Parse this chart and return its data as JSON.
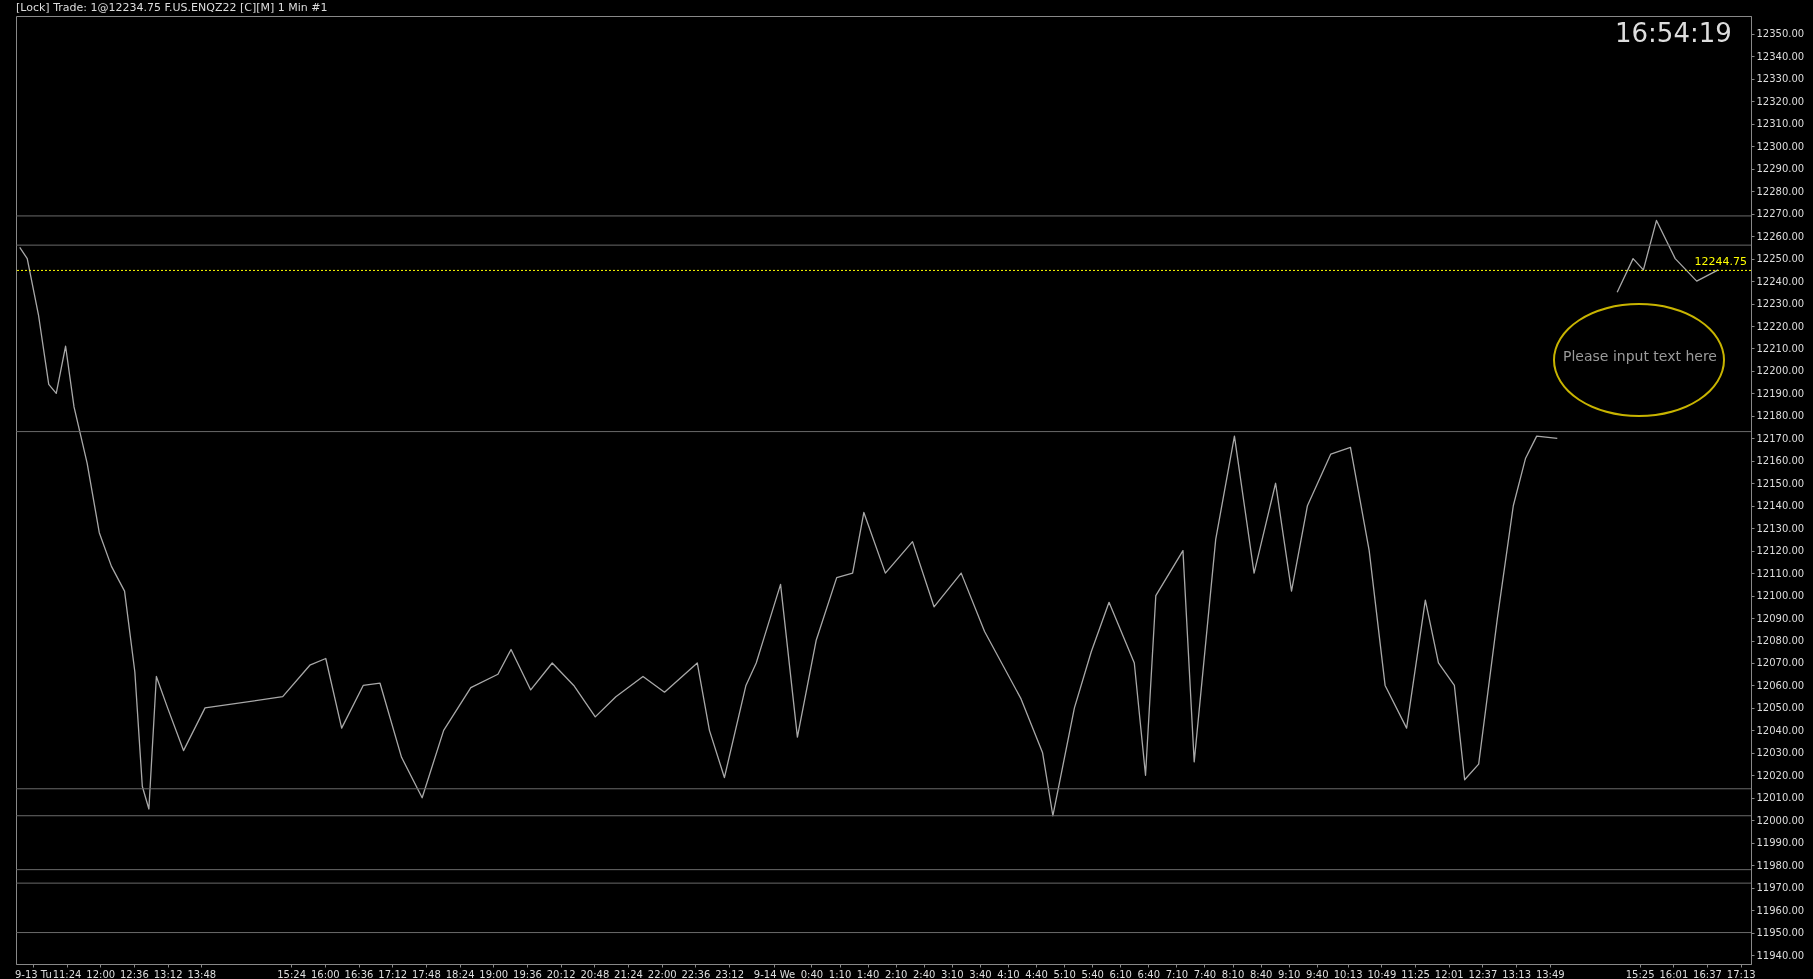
{
  "chart_data": {
    "type": "line",
    "title": "[Lock] Trade: 1@12234.75  F.US.ENQZ22 [C][M]  1 Min   #1",
    "annotations": [
      "16:54:19",
      "Please input text here"
    ],
    "series": [
      {
        "color": "#a8a8a8",
        "x": [
          "--09-13T10:34",
          "--09-13T10:42",
          "--09-13T10:54",
          "--09-13T11:05",
          "--09-13T11:13",
          "--09-13T11:23",
          "--09-13T11:32",
          "--09-13T11:46",
          "--09-13T11:59",
          "--09-13T12:12",
          "--09-13T12:26",
          "--09-13T12:37",
          "--09-13T12:45",
          "--09-13T12:52",
          "--09-13T13:00",
          "--09-13T13:12",
          "--09-13T13:29",
          "--09-13T13:52",
          "--09-13T15:15",
          "--09-13T15:44",
          "--09-13T16:01",
          "--09-13T16:18",
          "--09-13T16:41",
          "--09-13T16:59",
          "--09-13T17:22",
          "--09-13T17:44",
          "--09-13T18:07",
          "--09-13T18:36",
          "--09-13T19:05",
          "--09-13T19:19",
          "--09-13T19:40",
          "--09-13T20:03",
          "--09-13T20:26",
          "--09-13T20:49",
          "--09-13T21:11",
          "--09-13T21:40",
          "--09-13T22:03",
          "--09-13T22:38",
          "--09-13T22:51",
          "--09-13T23:07",
          "--09-13T23:30",
          "--09-13T23:41",
          "--09-14T00:07",
          "--09-14T00:25",
          "--09-14T00:45",
          "--09-14T01:07",
          "--09-14T01:24",
          "--09-14T01:36",
          "--09-14T01:59",
          "--09-14T02:28",
          "--09-14T02:51",
          "--09-14T03:20",
          "--09-14T03:45",
          "--09-14T04:24",
          "--09-14T04:47",
          "--09-14T04:58",
          "--09-14T05:21",
          "--09-14T05:39",
          "--09-14T05:58",
          "--09-14T06:25",
          "--09-14T06:37",
          "--09-14T06:48",
          "--09-14T07:17",
          "--09-14T07:29",
          "--09-14T07:52",
          "--09-14T08:12",
          "--09-14T08:33",
          "--09-14T08:56",
          "--09-14T09:13",
          "--09-14T09:30",
          "--09-14T09:55",
          "--09-14T10:16",
          "--09-14T10:36",
          "--09-14T10:53",
          "--09-14T11:16",
          "--09-14T11:36",
          "--09-14T11:50",
          "--09-14T12:07",
          "--09-14T12:18",
          "--09-14T12:33",
          "--09-14T12:53",
          "--09-14T13:10",
          "--09-14T13:23",
          "--09-14T13:35",
          "--09-14T13:57"
        ],
        "values": [
          12255,
          12250,
          12225,
          12194,
          12190,
          12211,
          12184,
          12159,
          12128,
          12113,
          12102,
          12066,
          12015,
          12005,
          12064,
          12050,
          12031,
          12050,
          12055,
          12069,
          12072,
          12041,
          12060,
          12061,
          12028,
          12010,
          12040,
          12059,
          12065,
          12076,
          12058,
          12070,
          12060,
          12046,
          12055,
          12064,
          12057,
          12070,
          12040,
          12019,
          12060,
          12070,
          12105,
          12037,
          12080,
          12108,
          12110,
          12137,
          12110,
          12124,
          12095,
          12110,
          12084,
          12054,
          12030,
          12002,
          12050,
          12075,
          12097,
          12070,
          12020,
          12100,
          12120,
          12026,
          12125,
          12171,
          12110,
          12150,
          12102,
          12140,
          12163,
          12166,
          12120,
          12060,
          12041,
          12098,
          12070,
          12060,
          12018,
          12025,
          12090,
          12140,
          12161,
          12171,
          12170
        ]
      },
      {
        "color": "#a8a8a8",
        "x": [
          "--09-14T15:01",
          "--09-14T15:18",
          "--09-14T15:29",
          "--09-14T15:43",
          "--09-14T16:03",
          "--09-14T16:26",
          "--09-14T16:49"
        ],
        "values": [
          12235,
          12250,
          12245,
          12267,
          12250,
          12240,
          12245
        ]
      }
    ],
    "xlim": [
      "--09-13T10:30",
      "--09-14T17:24"
    ],
    "xticks": [
      {
        "value": "--09-13T10:48",
        "label": "9-13 Tu"
      },
      {
        "value": "--09-13T11:24",
        "label": "11:24"
      },
      {
        "value": "--09-13T12:00",
        "label": "12:00"
      },
      {
        "value": "--09-13T12:36",
        "label": "12:36"
      },
      {
        "value": "--09-13T13:12",
        "label": "13:12"
      },
      {
        "value": "--09-13T13:48",
        "label": "13:48"
      },
      {
        "value": "--09-13T15:24",
        "label": "15:24"
      },
      {
        "value": "--09-13T16:00",
        "label": "16:00"
      },
      {
        "value": "--09-13T16:36",
        "label": "16:36"
      },
      {
        "value": "--09-13T17:12",
        "label": "17:12"
      },
      {
        "value": "--09-13T17:48",
        "label": "17:48"
      },
      {
        "value": "--09-13T18:24",
        "label": "18:24"
      },
      {
        "value": "--09-13T19:00",
        "label": "19:00"
      },
      {
        "value": "--09-13T19:36",
        "label": "19:36"
      },
      {
        "value": "--09-13T20:12",
        "label": "20:12"
      },
      {
        "value": "--09-13T20:48",
        "label": "20:48"
      },
      {
        "value": "--09-13T21:24",
        "label": "21:24"
      },
      {
        "value": "--09-13T22:00",
        "label": "22:00"
      },
      {
        "value": "--09-13T22:36",
        "label": "22:36"
      },
      {
        "value": "--09-13T23:12",
        "label": "23:12"
      },
      {
        "value": "--09-14T00:00",
        "label": "9-14 We"
      },
      {
        "value": "--09-14T00:40",
        "label": "0:40"
      },
      {
        "value": "--09-14T01:10",
        "label": "1:10"
      },
      {
        "value": "--09-14T01:40",
        "label": "1:40"
      },
      {
        "value": "--09-14T02:10",
        "label": "2:10"
      },
      {
        "value": "--09-14T02:40",
        "label": "2:40"
      },
      {
        "value": "--09-14T03:10",
        "label": "3:10"
      },
      {
        "value": "--09-14T03:40",
        "label": "3:40"
      },
      {
        "value": "--09-14T04:10",
        "label": "4:10"
      },
      {
        "value": "--09-14T04:40",
        "label": "4:40"
      },
      {
        "value": "--09-14T05:10",
        "label": "5:10"
      },
      {
        "value": "--09-14T05:40",
        "label": "5:40"
      },
      {
        "value": "--09-14T06:10",
        "label": "6:10"
      },
      {
        "value": "--09-14T06:40",
        "label": "6:40"
      },
      {
        "value": "--09-14T07:10",
        "label": "7:10"
      },
      {
        "value": "--09-14T07:40",
        "label": "7:40"
      },
      {
        "value": "--09-14T08:10",
        "label": "8:10"
      },
      {
        "value": "--09-14T08:40",
        "label": "8:40"
      },
      {
        "value": "--09-14T09:10",
        "label": "9:10"
      },
      {
        "value": "--09-14T09:40",
        "label": "9:40"
      },
      {
        "value": "--09-14T10:13",
        "label": "10:13"
      },
      {
        "value": "--09-14T10:49",
        "label": "10:49"
      },
      {
        "value": "--09-14T11:25",
        "label": "11:25"
      },
      {
        "value": "--09-14T12:01",
        "label": "12:01"
      },
      {
        "value": "--09-14T12:37",
        "label": "12:37"
      },
      {
        "value": "--09-14T13:13",
        "label": "13:13"
      },
      {
        "value": "--09-14T13:49",
        "label": "13:49"
      },
      {
        "value": "--09-14T15:25",
        "label": "15:25"
      },
      {
        "value": "--09-14T16:01",
        "label": "16:01"
      },
      {
        "value": "--09-14T16:37",
        "label": "16:37"
      },
      {
        "value": "--09-14T17:13",
        "label": "17:13"
      }
    ],
    "ylim": [
      11936,
      12358
    ],
    "yticks": [
      {
        "value": 11940,
        "label": "11940.00"
      },
      {
        "value": 11950,
        "label": "11950.00"
      },
      {
        "value": 11960,
        "label": "11960.00"
      },
      {
        "value": 11970,
        "label": "11970.00"
      },
      {
        "value": 11980,
        "label": "11980.00"
      },
      {
        "value": 11990,
        "label": "11990.00"
      },
      {
        "value": 12000,
        "label": "12000.00"
      },
      {
        "value": 12010,
        "label": "12010.00"
      },
      {
        "value": 12020,
        "label": "12020.00"
      },
      {
        "value": 12030,
        "label": "12030.00"
      },
      {
        "value": 12040,
        "label": "12040.00"
      },
      {
        "value": 12050,
        "label": "12050.00"
      },
      {
        "value": 12060,
        "label": "12060.00"
      },
      {
        "value": 12070,
        "label": "12070.00"
      },
      {
        "value": 12080,
        "label": "12080.00"
      },
      {
        "value": 12090,
        "label": "12090.00"
      },
      {
        "value": 12100,
        "label": "12100.00"
      },
      {
        "value": 12110,
        "label": "12110.00"
      },
      {
        "value": 12120,
        "label": "12120.00"
      },
      {
        "value": 12130,
        "label": "12130.00"
      },
      {
        "value": 12140,
        "label": "12140.00"
      },
      {
        "value": 12150,
        "label": "12150.00"
      },
      {
        "value": 12160,
        "label": "12160.00"
      },
      {
        "value": 12170,
        "label": "12170.00"
      },
      {
        "value": 12180,
        "label": "12180.00"
      },
      {
        "value": 12190,
        "label": "12190.00"
      },
      {
        "value": 12200,
        "label": "12200.00"
      },
      {
        "value": 12210,
        "label": "12210.00"
      },
      {
        "value": 12220,
        "label": "12220.00"
      },
      {
        "value": 12230,
        "label": "12230.00"
      },
      {
        "value": 12240,
        "label": "12240.00"
      },
      {
        "value": 12250,
        "label": "12250.00"
      },
      {
        "value": 12260,
        "label": "12260.00"
      },
      {
        "value": 12270,
        "label": "12270.00"
      },
      {
        "value": 12280,
        "label": "12280.00"
      },
      {
        "value": 12290,
        "label": "12290.00"
      },
      {
        "value": 12300,
        "label": "12300.00"
      },
      {
        "value": 12310,
        "label": "12310.00"
      },
      {
        "value": 12320,
        "label": "12320.00"
      },
      {
        "value": 12330,
        "label": "12330.00"
      },
      {
        "value": 12340,
        "label": "12340.00"
      },
      {
        "value": 12350,
        "label": "12350.00"
      }
    ],
    "ref_lines": [
      {
        "axis": "y",
        "value": 12256,
        "color": "#6a6a6a"
      },
      {
        "axis": "y",
        "value": 12269,
        "color": "#6a6a6a"
      },
      {
        "axis": "y",
        "value": 12173,
        "color": "#6a6a6a"
      },
      {
        "axis": "y",
        "value": 12014,
        "color": "#6a6a6a"
      },
      {
        "axis": "y",
        "value": 12002,
        "color": "#6a6a6a"
      },
      {
        "axis": "y",
        "value": 11978,
        "color": "#6a6a6a"
      },
      {
        "axis": "y",
        "value": 11972,
        "color": "#6a6a6a"
      },
      {
        "axis": "y",
        "value": 11950,
        "color": "#6a6a6a"
      },
      {
        "axis": "y",
        "value": 12244.75,
        "label": "12244.75",
        "color": "#ffff00",
        "line_style": "dotted"
      }
    ],
    "grid": false,
    "line_style": "solid"
  }
}
